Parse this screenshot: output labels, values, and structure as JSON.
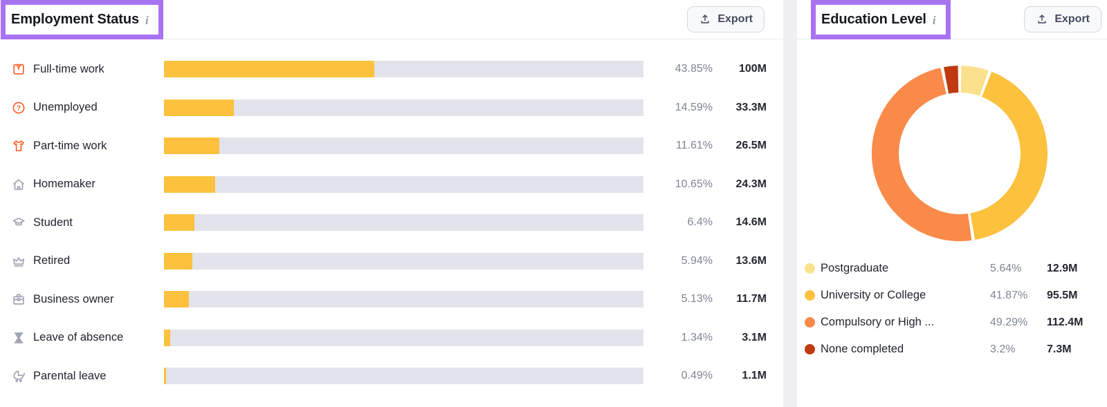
{
  "colors": {
    "accent_purple": "#A873F2",
    "bar_fill": "#FCC13D",
    "bar_track": "#E2E3EB",
    "icon_orange": "#FF642D",
    "icon_gray": "#A2A6B4",
    "divider": "#EEF0F4"
  },
  "left_panel": {
    "export_label": "Export",
    "info_icon": "i",
    "icons": [
      "full-time-work-icon",
      "unemployed-icon",
      "part-time-work-icon",
      "homemaker-icon",
      "student-icon",
      "retired-icon",
      "business-owner-icon",
      "leave-of-absence-icon",
      "parental-leave-icon"
    ]
  },
  "right_panel": {
    "export_label": "Export",
    "info_icon": "i"
  },
  "chart_data": [
    {
      "type": "bar",
      "title": "Employment Status",
      "orientation": "horizontal",
      "xlim": [
        0,
        100
      ],
      "bar_color": "#FCC13D",
      "track_color": "#E2E3EB",
      "rows": [
        {
          "icon": "full-time-work-icon",
          "label": "Full-time work",
          "pct": 43.85,
          "pct_label": "43.85%",
          "value": "100M"
        },
        {
          "icon": "unemployed-icon",
          "label": "Unemployed",
          "pct": 14.59,
          "pct_label": "14.59%",
          "value": "33.3M"
        },
        {
          "icon": "part-time-work-icon",
          "label": "Part-time work",
          "pct": 11.61,
          "pct_label": "11.61%",
          "value": "26.5M"
        },
        {
          "icon": "homemaker-icon",
          "label": "Homemaker",
          "pct": 10.65,
          "pct_label": "10.65%",
          "value": "24.3M"
        },
        {
          "icon": "student-icon",
          "label": "Student",
          "pct": 6.4,
          "pct_label": "6.4%",
          "value": "14.6M"
        },
        {
          "icon": "retired-icon",
          "label": "Retired",
          "pct": 5.94,
          "pct_label": "5.94%",
          "value": "13.6M"
        },
        {
          "icon": "business-owner-icon",
          "label": "Business owner",
          "pct": 5.13,
          "pct_label": "5.13%",
          "value": "11.7M"
        },
        {
          "icon": "leave-of-absence-icon",
          "label": "Leave of absence",
          "pct": 1.34,
          "pct_label": "1.34%",
          "value": "3.1M"
        },
        {
          "icon": "parental-leave-icon",
          "label": "Parental leave",
          "pct": 0.49,
          "pct_label": "0.49%",
          "value": "1.1M"
        }
      ]
    },
    {
      "type": "donut",
      "title": "Education Level",
      "legend_position": "bottom",
      "start_angle": "top",
      "direction": "clockwise",
      "slices": [
        {
          "label": "Postgraduate",
          "pct": 5.64,
          "pct_label": "5.64%",
          "value": "12.9M",
          "color": "#FBE18C"
        },
        {
          "label": "University or College",
          "pct": 41.87,
          "pct_label": "41.87%",
          "value": "95.5M",
          "color": "#FCC13D"
        },
        {
          "label": "Compulsory or High ...",
          "pct": 49.29,
          "pct_label": "49.29%",
          "value": "112.4M",
          "color": "#FA8A49"
        },
        {
          "label": "None completed",
          "pct": 3.2,
          "pct_label": "3.2%",
          "value": "7.3M",
          "color": "#BF3A10"
        }
      ]
    }
  ]
}
